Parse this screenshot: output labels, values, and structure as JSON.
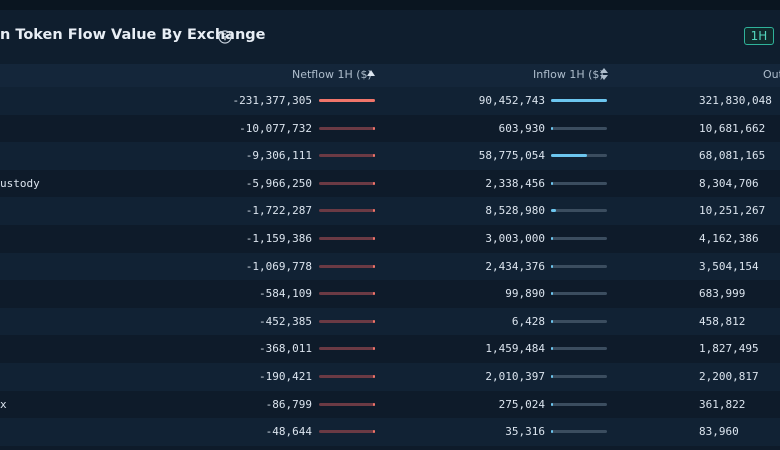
{
  "header": {
    "title": "n Token Flow Value By Exchange",
    "timeframe": "1H"
  },
  "columns": {
    "netflow": "Netflow 1H ($)",
    "inflow": "Inflow 1H ($)",
    "outflow": "Out"
  },
  "rows": [
    {
      "name": "",
      "netflow": "-231,377,305",
      "netflow_share": 1.0,
      "inflow": "90,452,743",
      "inflow_share": 1.0,
      "outflow": "321,830,048"
    },
    {
      "name": "",
      "netflow": "-10,077,732",
      "netflow_share": 0.044,
      "inflow": "603,930",
      "inflow_share": 0.007,
      "outflow": "10,681,662"
    },
    {
      "name": "",
      "netflow": "-9,306,111",
      "netflow_share": 0.04,
      "inflow": "58,775,054",
      "inflow_share": 0.65,
      "outflow": "68,081,165"
    },
    {
      "name": "ustody",
      "netflow": "-5,966,250",
      "netflow_share": 0.026,
      "inflow": "2,338,456",
      "inflow_share": 0.026,
      "outflow": "8,304,706"
    },
    {
      "name": "",
      "netflow": "-1,722,287",
      "netflow_share": 0.007,
      "inflow": "8,528,980",
      "inflow_share": 0.094,
      "outflow": "10,251,267"
    },
    {
      "name": "",
      "netflow": "-1,159,386",
      "netflow_share": 0.005,
      "inflow": "3,003,000",
      "inflow_share": 0.033,
      "outflow": "4,162,386"
    },
    {
      "name": "",
      "netflow": "-1,069,778",
      "netflow_share": 0.005,
      "inflow": "2,434,376",
      "inflow_share": 0.027,
      "outflow": "3,504,154"
    },
    {
      "name": "",
      "netflow": "-584,109",
      "netflow_share": 0.003,
      "inflow": "99,890",
      "inflow_share": 0.001,
      "outflow": "683,999"
    },
    {
      "name": "",
      "netflow": "-452,385",
      "netflow_share": 0.002,
      "inflow": "6,428",
      "inflow_share": 0.0,
      "outflow": "458,812"
    },
    {
      "name": "",
      "netflow": "-368,011",
      "netflow_share": 0.002,
      "inflow": "1,459,484",
      "inflow_share": 0.016,
      "outflow": "1,827,495"
    },
    {
      "name": "",
      "netflow": "-190,421",
      "netflow_share": 0.001,
      "inflow": "2,010,397",
      "inflow_share": 0.022,
      "outflow": "2,200,817"
    },
    {
      "name": "x",
      "netflow": "-86,799",
      "netflow_share": 0.0,
      "inflow": "275,024",
      "inflow_share": 0.003,
      "outflow": "361,822"
    },
    {
      "name": "",
      "netflow": "-48,644",
      "netflow_share": 0.0,
      "inflow": "35,316",
      "inflow_share": 0.0,
      "outflow": "83,960"
    }
  ],
  "colors": {
    "background": "#0e1b2a",
    "accent": "#2fb29a",
    "netflow_bar": "#f0756a",
    "inflow_bar": "#6cc6ef"
  },
  "icons": {
    "info": "info-icon",
    "sort_asc": "sort-up-icon",
    "sort_both": "sort-both-icon"
  }
}
